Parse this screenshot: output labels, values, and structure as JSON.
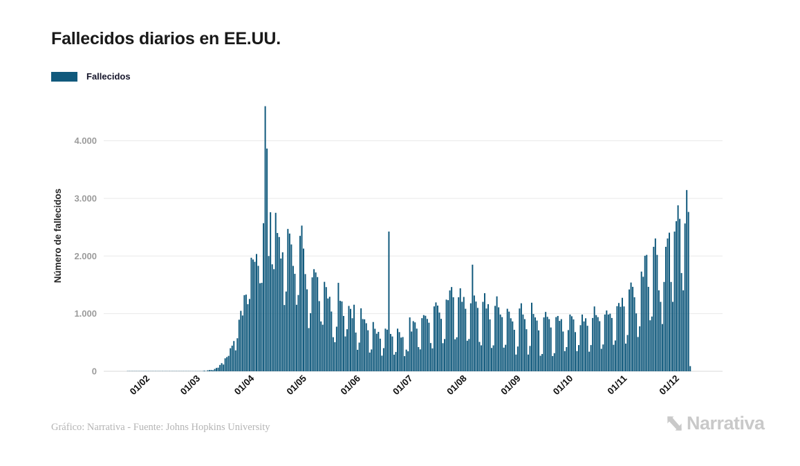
{
  "header": {
    "title": "Fallecidos diarios en EE.UU."
  },
  "legend": {
    "label": "Fallecidos",
    "color": "#10597c"
  },
  "footer": {
    "credit": "Gráfico: Narrativa - Fuente: Johns Hopkins University",
    "brand": "Narrativa"
  },
  "chart_data": {
    "type": "bar",
    "title": "Fallecidos diarios en EE.UU.",
    "series_name": "Fallecidos",
    "xlabel": "",
    "ylabel": "Número de fallecidos",
    "ylim": [
      0,
      4700
    ],
    "grid": "horizontal",
    "bar_color": "#10597c",
    "y_ticks": [
      "0",
      "1.000",
      "2.000",
      "3.000",
      "4.000"
    ],
    "x_tick_labels": [
      "01/02",
      "01/03",
      "01/04",
      "01/05",
      "01/06",
      "01/07",
      "01/08",
      "01/09",
      "01/10",
      "01/11",
      "01/12"
    ],
    "start_date": "22/01/2020",
    "end_date": "15/12/2020",
    "values": [
      0,
      0,
      0,
      0,
      0,
      1,
      1,
      1,
      1,
      1,
      1,
      1,
      2,
      1,
      1,
      2,
      1,
      1,
      2,
      2,
      1,
      2,
      2,
      1,
      2,
      2,
      2,
      3,
      2,
      2,
      3,
      3,
      2,
      3,
      3,
      4,
      4,
      5,
      6,
      1,
      2,
      3,
      2,
      4,
      3,
      5,
      7,
      5,
      10,
      12,
      10,
      17,
      21,
      23,
      18,
      41,
      58,
      63,
      110,
      141,
      117,
      225,
      247,
      268,
      400,
      445,
      525,
      363,
      573,
      895,
      1049,
      968,
      1321,
      1331,
      1165,
      1255,
      1970,
      1940,
      1900,
      2035,
      1830,
      1528,
      1535,
      2570,
      4600,
      3865,
      2000,
      2760,
      1856,
      1772,
      2750,
      2400,
      2330,
      1957,
      2065,
      1150,
      1384,
      2470,
      2390,
      2201,
      1829,
      1691,
      1154,
      1324,
      2350,
      2528,
      2129,
      1687,
      1422,
      750,
      1008,
      1630,
      1772,
      1715,
      1635,
      1218,
      865,
      808,
      1552,
      1461,
      1263,
      1293,
      1037,
      592,
      505,
      774,
      1535,
      1223,
      1212,
      960,
      605,
      730,
      1134,
      1083,
      921,
      1155,
      672,
      373,
      498,
      1093,
      906,
      902,
      834,
      712,
      325,
      379,
      855,
      738,
      652,
      684,
      566,
      271,
      402,
      740,
      722,
      2425,
      648,
      604,
      288,
      335,
      740,
      680,
      585,
      594,
      263,
      376,
      347,
      935,
      690,
      870,
      849,
      740,
      420,
      380,
      922,
      975,
      963,
      908,
      843,
      490,
      398,
      1126,
      1195,
      1140,
      1019,
      910,
      488,
      560,
      1244,
      1234,
      1403,
      1462,
      1285,
      555,
      590,
      1285,
      1440,
      1205,
      1290,
      1085,
      530,
      560,
      1180,
      1850,
      1315,
      1210,
      1100,
      510,
      450,
      1205,
      1355,
      1090,
      1165,
      900,
      405,
      450,
      1135,
      1300,
      1110,
      985,
      940,
      410,
      460,
      1085,
      1035,
      920,
      865,
      720,
      290,
      430,
      1090,
      1180,
      985,
      905,
      730,
      290,
      440,
      1190,
      995,
      935,
      880,
      710,
      270,
      300,
      935,
      1030,
      945,
      905,
      760,
      265,
      315,
      940,
      960,
      875,
      905,
      690,
      350,
      420,
      715,
      985,
      955,
      900,
      680,
      350,
      455,
      800,
      985,
      865,
      920,
      790,
      340,
      455,
      925,
      1125,
      975,
      940,
      870,
      390,
      465,
      985,
      1055,
      985,
      1000,
      925,
      460,
      535,
      1130,
      1185,
      1120,
      1275,
      1125,
      480,
      630,
      1420,
      1540,
      1465,
      1285,
      1005,
      595,
      780,
      1730,
      1640,
      2005,
      2020,
      1465,
      885,
      950,
      2160,
      2305,
      2020,
      1405,
      1205,
      820,
      1550,
      2160,
      2305,
      2405,
      1550,
      1205,
      2425,
      2605,
      2880,
      2645,
      1705,
      1405,
      2565,
      3145,
      2765,
      90
    ]
  }
}
